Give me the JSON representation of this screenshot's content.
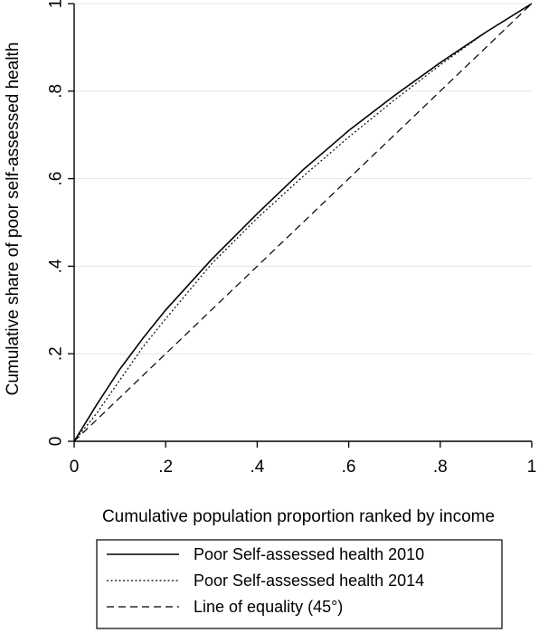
{
  "chart_data": {
    "type": "line",
    "xlabel": "Cumulative population proportion ranked  by income",
    "ylabel": "Cumulative share  of poor self-assessed health",
    "xlim": [
      0,
      1
    ],
    "ylim": [
      0,
      1
    ],
    "x_ticks": [
      0,
      0.2,
      0.4,
      0.6,
      0.8,
      1
    ],
    "x_tick_labels": [
      "0",
      ".2",
      ".4",
      ".6",
      ".8",
      "1"
    ],
    "y_ticks": [
      0,
      0.2,
      0.4,
      0.6,
      0.8,
      1
    ],
    "y_tick_labels": [
      "0",
      ".2",
      ".4",
      ".6",
      ".8",
      "1"
    ],
    "grid": "horizontal",
    "legend_position": "bottom",
    "colors": {
      "line": "#000000",
      "grid": "#dde6ea",
      "axis": "#000000"
    },
    "series": [
      {
        "name": "Poor Self-assessed health 2010",
        "style": "solid",
        "x": [
          0,
          0.05,
          0.1,
          0.15,
          0.2,
          0.3,
          0.4,
          0.5,
          0.6,
          0.7,
          0.8,
          0.9,
          1
        ],
        "y": [
          0,
          0.085,
          0.165,
          0.235,
          0.3,
          0.415,
          0.52,
          0.62,
          0.71,
          0.79,
          0.865,
          0.935,
          1
        ]
      },
      {
        "name": "Poor Self-assessed health 2014",
        "style": "dotted",
        "x": [
          0,
          0.05,
          0.1,
          0.15,
          0.2,
          0.3,
          0.4,
          0.5,
          0.6,
          0.7,
          0.8,
          0.9,
          1
        ],
        "y": [
          0,
          0.065,
          0.14,
          0.215,
          0.28,
          0.405,
          0.51,
          0.605,
          0.695,
          0.78,
          0.86,
          0.935,
          1
        ]
      },
      {
        "name": "Line of equality (45°)",
        "style": "dashed",
        "x": [
          0,
          1
        ],
        "y": [
          0,
          1
        ]
      }
    ]
  }
}
